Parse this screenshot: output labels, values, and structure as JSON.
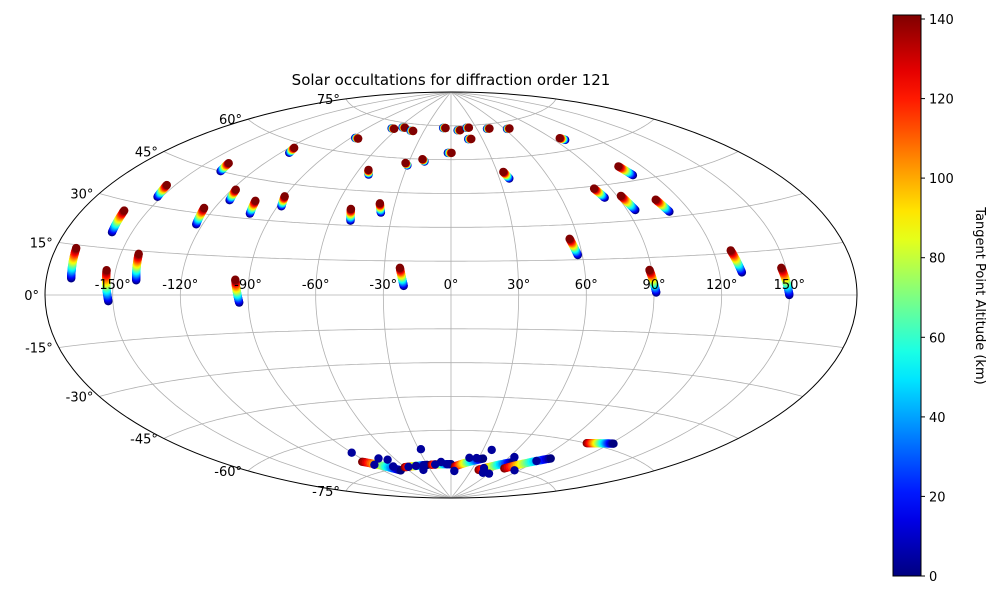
{
  "chart_data": {
    "type": "scatter",
    "projection": "aitoff",
    "title": "Solar occultations for diffraction order 121",
    "colorbar": {
      "label": "Tangent Point Altitude (km)",
      "min": 0,
      "max": 141,
      "ticks": [
        "0",
        "20",
        "40",
        "60",
        "80",
        "100",
        "120",
        "140"
      ],
      "tick_values": [
        0,
        20,
        40,
        60,
        80,
        100,
        120,
        140
      ],
      "colormap": "jet"
    },
    "lon_ticks": [
      "-150°",
      "-120°",
      "-90°",
      "-60°",
      "-30°",
      "0°",
      "30°",
      "60°",
      "90°",
      "120°",
      "150°"
    ],
    "lon_tick_values": [
      -150,
      -120,
      -90,
      -60,
      -30,
      0,
      30,
      60,
      90,
      120,
      150
    ],
    "lat_ticks": [
      "-75°",
      "-60°",
      "-45°",
      "-30°",
      "-15°",
      "0°",
      "15°",
      "30°",
      "45°",
      "60°",
      "75°"
    ],
    "lat_tick_values": [
      -75,
      -60,
      -45,
      -30,
      -15,
      0,
      15,
      30,
      45,
      60,
      75
    ],
    "grid": true,
    "tracks": [
      {
        "lon": -169,
        "lat_top": 14,
        "lat_bot": 5
      },
      {
        "lon": -159,
        "lat_top": 27,
        "lat_bot": 20
      },
      {
        "lon": -152,
        "lat_top": 37,
        "lat_bot": 33
      },
      {
        "lon": -152,
        "lat_top": 8,
        "lat_bot": -2
      },
      {
        "lon": -140,
        "lat_top": 14,
        "lat_bot": 5
      },
      {
        "lon": -137,
        "lat_top": 48,
        "lat_bot": 45
      },
      {
        "lon": -123,
        "lat_top": 32,
        "lat_bot": 26
      },
      {
        "lon": -116,
        "lat_top": 40,
        "lat_bot": 36
      },
      {
        "lon": -115,
        "lat_top": 58,
        "lat_bot": 56
      },
      {
        "lon": -101,
        "lat_top": 37,
        "lat_bot": 32
      },
      {
        "lon": -94,
        "lat_top": 6,
        "lat_bot": -3
      },
      {
        "lon": -88,
        "lat_top": 40,
        "lat_bot": 36
      },
      {
        "lon": -85,
        "lat_top": 66,
        "lat_bot": 66
      },
      {
        "lon": -65,
        "lat_top": 72,
        "lat_bot": 72
      },
      {
        "lon": -55,
        "lat_top": 73,
        "lat_bot": 73
      },
      {
        "lon": -52,
        "lat_top": 54,
        "lat_bot": 52
      },
      {
        "lon": -50,
        "lat_top": 37,
        "lat_bot": 32
      },
      {
        "lon": -43,
        "lat_top": 72,
        "lat_bot": 72
      },
      {
        "lon": -36,
        "lat_top": 40,
        "lat_bot": 36
      },
      {
        "lon": -30,
        "lat_top": 58,
        "lat_bot": 57
      },
      {
        "lon": -21,
        "lat_top": 12,
        "lat_bot": 4
      },
      {
        "lon": -19,
        "lat_top": 60,
        "lat_bot": 59
      },
      {
        "lon": -8,
        "lat_top": 74,
        "lat_bot": 74
      },
      {
        "lon": -1,
        "lat_top": 63,
        "lat_bot": 63
      },
      {
        "lon": 9,
        "lat_top": 73,
        "lat_bot": 73
      },
      {
        "lon": 18,
        "lat_top": 69,
        "lat_bot": 69
      },
      {
        "lon": 20,
        "lat_top": 74,
        "lat_bot": 74
      },
      {
        "lon": 36,
        "lat_top": 54,
        "lat_bot": 51
      },
      {
        "lon": 43,
        "lat_top": 73,
        "lat_bot": 73
      },
      {
        "lon": 58,
        "lat_top": 24,
        "lat_bot": 17
      },
      {
        "lon": 64,
        "lat_top": 72,
        "lat_bot": 72
      },
      {
        "lon": 83,
        "lat_top": 44,
        "lat_bot": 40
      },
      {
        "lon": 91,
        "lat_top": 10,
        "lat_bot": 1
      },
      {
        "lon": 94,
        "lat_top": 40,
        "lat_bot": 34
      },
      {
        "lon": 98,
        "lat_top": 65,
        "lat_bot": 64
      },
      {
        "lon": 109,
        "lat_top": 51,
        "lat_bot": 47
      },
      {
        "lon": 110,
        "lat_top": 37,
        "lat_bot": 32
      },
      {
        "lon": 130,
        "lat_top": 16,
        "lat_bot": 8
      },
      {
        "lon": 150,
        "lat_top": 9,
        "lat_bot": 0
      }
    ],
    "south_arcs": [
      {
        "lon_start": -94,
        "lon_end": -70,
        "lat_start": -70,
        "lat_end": -76
      },
      {
        "lon_start": -60,
        "lon_end": -30,
        "lat_start": -75,
        "lat_end": -75
      },
      {
        "lon_start": -25,
        "lon_end": 0,
        "lat_start": -75,
        "lat_end": -75
      },
      {
        "lon_start": 5,
        "lon_end": 35,
        "lat_start": -76,
        "lat_end": -72
      },
      {
        "lon_start": 40,
        "lon_end": 70,
        "lat_start": -77,
        "lat_end": -72
      },
      {
        "lon_start": 70,
        "lon_end": 98,
        "lat_start": -75,
        "lat_end": -68
      },
      {
        "lon_start": 105,
        "lon_end": 122,
        "lat_start": -60,
        "lat_end": -58
      }
    ],
    "south_blue_points": [
      {
        "lon": -90,
        "lat": -66
      },
      {
        "lon": -88,
        "lat": -72
      },
      {
        "lon": -75,
        "lat": -70
      },
      {
        "lon": -72,
        "lat": -74
      },
      {
        "lon": -68,
        "lat": -71
      },
      {
        "lon": -55,
        "lat": -75
      },
      {
        "lon": -45,
        "lat": -75
      },
      {
        "lon": -40,
        "lat": -77
      },
      {
        "lon": -35,
        "lat": -75
      },
      {
        "lon": -28,
        "lat": -68
      },
      {
        "lon": -20,
        "lat": -75
      },
      {
        "lon": -12,
        "lat": -74
      },
      {
        "lon": -5,
        "lat": -75
      },
      {
        "lon": 5,
        "lat": -78
      },
      {
        "lon": 20,
        "lat": -72
      },
      {
        "lon": 28,
        "lat": -72
      },
      {
        "lon": 38,
        "lat": -68
      },
      {
        "lon": 45,
        "lat": -76
      },
      {
        "lon": 50,
        "lat": -78
      },
      {
        "lon": 60,
        "lat": -78
      },
      {
        "lon": 65,
        "lat": -70
      },
      {
        "lon": 85,
        "lat": -75
      },
      {
        "lon": 90,
        "lat": -70
      }
    ]
  }
}
